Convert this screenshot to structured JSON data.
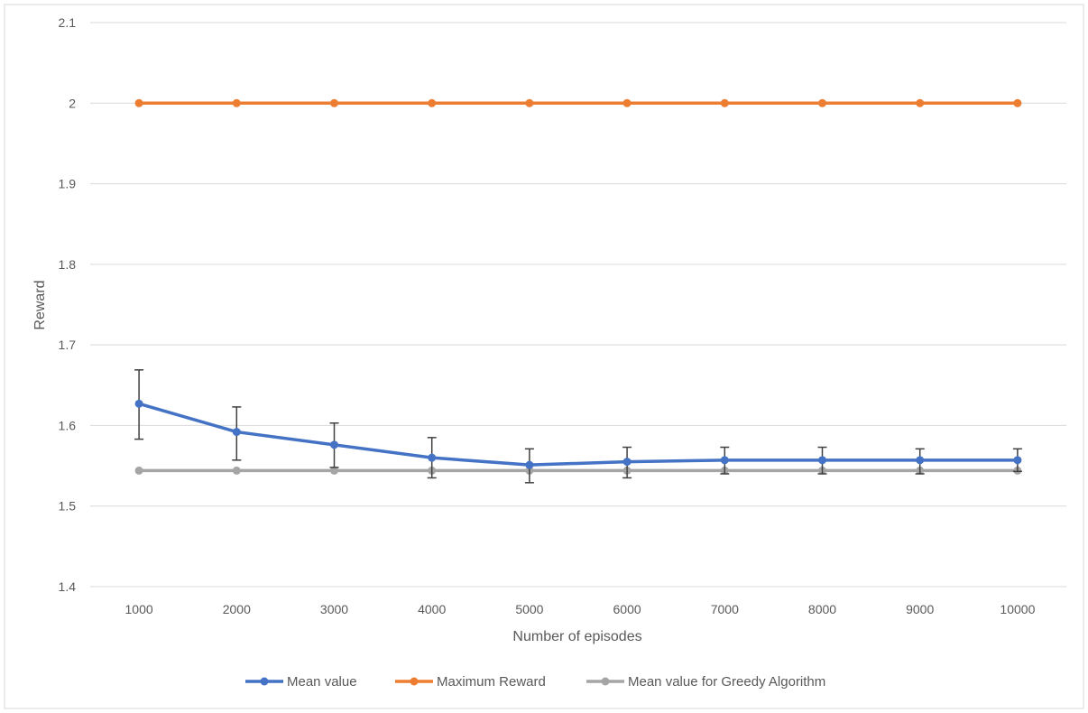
{
  "chart_data": {
    "type": "line",
    "xlabel": "Number of episodes",
    "ylabel": "Reward",
    "categories": [
      "1000",
      "2000",
      "3000",
      "4000",
      "5000",
      "6000",
      "7000",
      "8000",
      "9000",
      "10000"
    ],
    "ylim": [
      1.4,
      2.1
    ],
    "yticks": [
      "1.4",
      "1.5",
      "1.6",
      "1.7",
      "1.8",
      "1.9",
      "2",
      "2.1"
    ],
    "grid": "horizontal",
    "legend_position": "bottom",
    "series": [
      {
        "name": "Mean value",
        "color": "#4472C4",
        "values": [
          1.627,
          1.592,
          1.576,
          1.56,
          1.551,
          1.555,
          1.557,
          1.557,
          1.557,
          1.557
        ],
        "error_low": [
          1.583,
          1.557,
          1.548,
          1.535,
          1.529,
          1.535,
          1.54,
          1.54,
          1.54,
          1.543
        ],
        "error_high": [
          1.669,
          1.623,
          1.603,
          1.585,
          1.571,
          1.573,
          1.573,
          1.573,
          1.571,
          1.571
        ]
      },
      {
        "name": "Maximum Reward",
        "color": "#ED7D31",
        "values": [
          2.0,
          2.0,
          2.0,
          2.0,
          2.0,
          2.0,
          2.0,
          2.0,
          2.0,
          2.0
        ]
      },
      {
        "name": "Mean value for Greedy Algorithm",
        "color": "#A5A5A5",
        "values": [
          1.544,
          1.544,
          1.544,
          1.544,
          1.544,
          1.544,
          1.544,
          1.544,
          1.544,
          1.544
        ]
      }
    ]
  }
}
